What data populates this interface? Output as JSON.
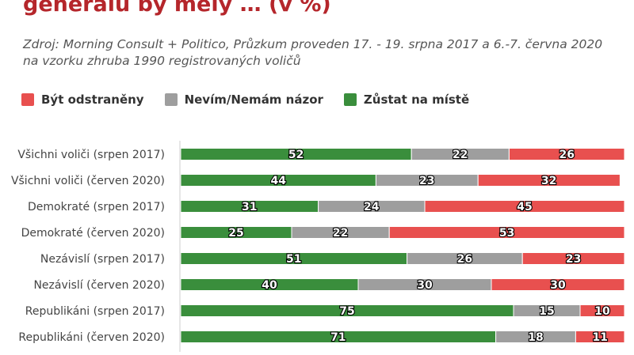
{
  "title": "generálů by měly … (v %)",
  "source": "Zdroj: Morning Consult + Politico, Průzkum proveden 17. - 19. srpna 2017 a 6.-7. června 2020 na vzorku zhruba 1990 registrovaných voličů",
  "legend": [
    {
      "name": "Být odstraněny",
      "color": "#e8504f"
    },
    {
      "name": "Nevím/Nemám názor",
      "color": "#9e9e9e"
    },
    {
      "name": "Zůstat na místě",
      "color": "#3a8e3c"
    }
  ],
  "chart_data": {
    "type": "bar",
    "orientation": "horizontal",
    "stacked": true,
    "percent": true,
    "categories": [
      "Všichni voliči (srpen 2017)",
      "Všichni voliči (červen 2020)",
      "Demokraté (srpen 2017)",
      "Demokraté (červen 2020)",
      "Nezávislí (srpen 2017)",
      "Nezávislí (červen 2020)",
      "Republikáni (srpen 2017)",
      "Republikáni (červen 2020)"
    ],
    "series": [
      {
        "name": "Zůstat na místě",
        "color": "#3a8e3c",
        "values": [
          52,
          44,
          31,
          25,
          51,
          40,
          75,
          71
        ]
      },
      {
        "name": "Nevím/Nemám názor",
        "color": "#9e9e9e",
        "values": [
          22,
          23,
          24,
          22,
          26,
          30,
          15,
          18
        ]
      },
      {
        "name": "Být odstraněny",
        "color": "#e8504f",
        "values": [
          26,
          32,
          45,
          53,
          23,
          30,
          10,
          11
        ]
      }
    ],
    "legend_position": "top-left"
  }
}
